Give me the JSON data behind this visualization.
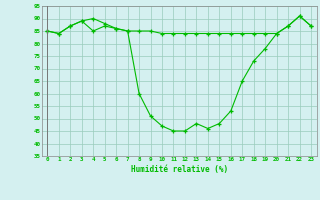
{
  "x": [
    0,
    1,
    2,
    3,
    4,
    5,
    6,
    7,
    8,
    9,
    10,
    11,
    12,
    13,
    14,
    15,
    16,
    17,
    18,
    19,
    20,
    21,
    22,
    23
  ],
  "line1": [
    85,
    84,
    87,
    89,
    85,
    87,
    86,
    85,
    85,
    85,
    84,
    84,
    84,
    84,
    84,
    84,
    84,
    84,
    84,
    84,
    84,
    87,
    91,
    87
  ],
  "line2": [
    85,
    84,
    87,
    89,
    90,
    88,
    86,
    85,
    60,
    51,
    47,
    45,
    45,
    48,
    46,
    48,
    53,
    65,
    73,
    78,
    84,
    87,
    91,
    87
  ],
  "line_color": "#00bb00",
  "bg_color": "#d4f0f0",
  "grid_color": "#99ccbb",
  "xlabel": "Humidité relative (%)",
  "ylim": [
    35,
    95
  ],
  "xlim": [
    -0.5,
    23.5
  ],
  "yticks": [
    35,
    40,
    45,
    50,
    55,
    60,
    65,
    70,
    75,
    80,
    85,
    90,
    95
  ],
  "xticks": [
    0,
    1,
    2,
    3,
    4,
    5,
    6,
    7,
    8,
    9,
    10,
    11,
    12,
    13,
    14,
    15,
    16,
    17,
    18,
    19,
    20,
    21,
    22,
    23
  ]
}
